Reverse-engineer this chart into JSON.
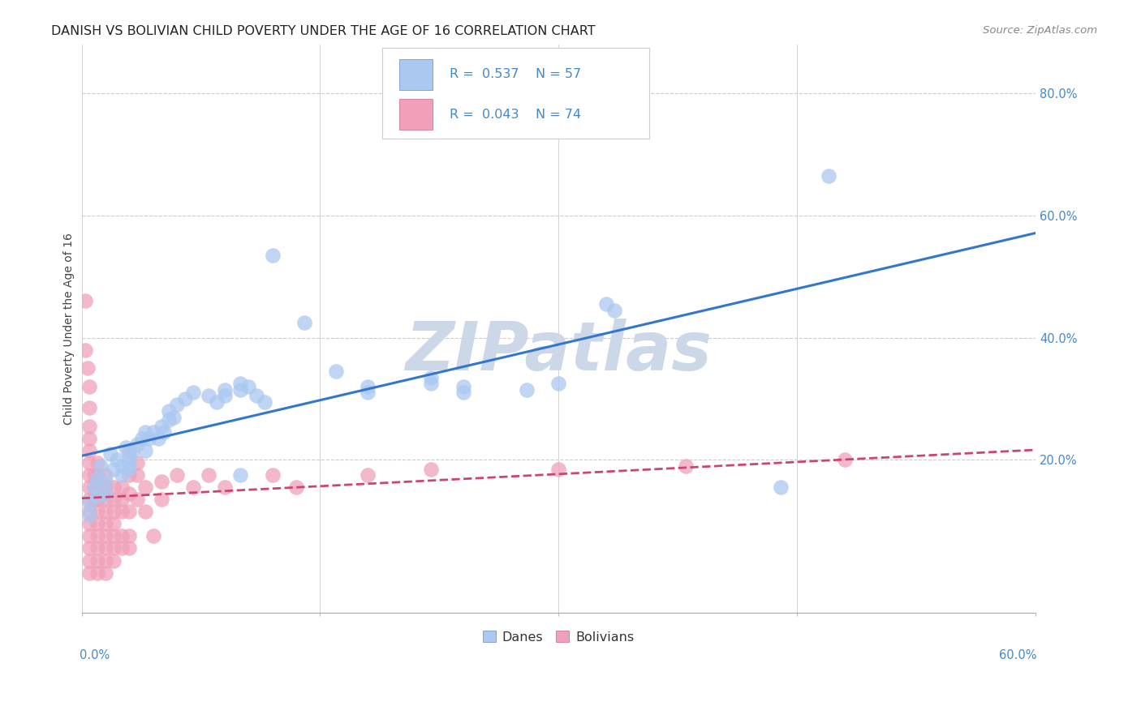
{
  "title": "DANISH VS BOLIVIAN CHILD POVERTY UNDER THE AGE OF 16 CORRELATION CHART",
  "source": "Source: ZipAtlas.com",
  "ylabel": "Child Poverty Under the Age of 16",
  "ytick_values": [
    0.2,
    0.4,
    0.6,
    0.8
  ],
  "ytick_labels": [
    "20.0%",
    "40.0%",
    "60.0%",
    "80.0%"
  ],
  "xlim": [
    0.0,
    0.6
  ],
  "ylim": [
    -0.05,
    0.88
  ],
  "danes_color": "#aac8f0",
  "bolivians_color": "#f0a0b8",
  "danes_line_color": "#3377cc",
  "bolivians_line_color": "#cc4477",
  "watermark": "ZIPatlas",
  "watermark_color": "#ccd8e8",
  "watermark_fontsize": 60,
  "background_color": "#ffffff",
  "grid_color": "#cccccc",
  "title_fontsize": 11.5,
  "source_fontsize": 9.5,
  "ylabel_fontsize": 10,
  "tick_fontsize": 10.5,
  "legend_fontsize": 11.5,
  "danes_points": [
    [
      0.005,
      0.13
    ],
    [
      0.005,
      0.11
    ],
    [
      0.008,
      0.155
    ],
    [
      0.01,
      0.17
    ],
    [
      0.01,
      0.14
    ],
    [
      0.012,
      0.19
    ],
    [
      0.015,
      0.165
    ],
    [
      0.015,
      0.145
    ],
    [
      0.018,
      0.21
    ],
    [
      0.02,
      0.185
    ],
    [
      0.022,
      0.2
    ],
    [
      0.025,
      0.19
    ],
    [
      0.025,
      0.175
    ],
    [
      0.028,
      0.22
    ],
    [
      0.03,
      0.205
    ],
    [
      0.03,
      0.195
    ],
    [
      0.03,
      0.185
    ],
    [
      0.032,
      0.215
    ],
    [
      0.035,
      0.225
    ],
    [
      0.038,
      0.235
    ],
    [
      0.04,
      0.245
    ],
    [
      0.04,
      0.215
    ],
    [
      0.042,
      0.235
    ],
    [
      0.045,
      0.245
    ],
    [
      0.048,
      0.235
    ],
    [
      0.05,
      0.255
    ],
    [
      0.052,
      0.245
    ],
    [
      0.055,
      0.28
    ],
    [
      0.055,
      0.265
    ],
    [
      0.058,
      0.27
    ],
    [
      0.06,
      0.29
    ],
    [
      0.065,
      0.3
    ],
    [
      0.07,
      0.31
    ],
    [
      0.08,
      0.305
    ],
    [
      0.085,
      0.295
    ],
    [
      0.09,
      0.315
    ],
    [
      0.09,
      0.305
    ],
    [
      0.1,
      0.325
    ],
    [
      0.1,
      0.315
    ],
    [
      0.1,
      0.175
    ],
    [
      0.105,
      0.32
    ],
    [
      0.11,
      0.305
    ],
    [
      0.115,
      0.295
    ],
    [
      0.12,
      0.535
    ],
    [
      0.14,
      0.425
    ],
    [
      0.16,
      0.345
    ],
    [
      0.18,
      0.32
    ],
    [
      0.18,
      0.31
    ],
    [
      0.22,
      0.335
    ],
    [
      0.22,
      0.325
    ],
    [
      0.24,
      0.32
    ],
    [
      0.24,
      0.31
    ],
    [
      0.28,
      0.315
    ],
    [
      0.3,
      0.325
    ],
    [
      0.33,
      0.455
    ],
    [
      0.335,
      0.445
    ],
    [
      0.44,
      0.155
    ],
    [
      0.47,
      0.665
    ]
  ],
  "bolivians_points": [
    [
      0.002,
      0.46
    ],
    [
      0.002,
      0.38
    ],
    [
      0.004,
      0.35
    ],
    [
      0.005,
      0.32
    ],
    [
      0.005,
      0.285
    ],
    [
      0.005,
      0.255
    ],
    [
      0.005,
      0.235
    ],
    [
      0.005,
      0.215
    ],
    [
      0.005,
      0.195
    ],
    [
      0.005,
      0.175
    ],
    [
      0.005,
      0.155
    ],
    [
      0.005,
      0.135
    ],
    [
      0.005,
      0.115
    ],
    [
      0.005,
      0.095
    ],
    [
      0.005,
      0.075
    ],
    [
      0.005,
      0.055
    ],
    [
      0.005,
      0.035
    ],
    [
      0.005,
      0.015
    ],
    [
      0.008,
      0.175
    ],
    [
      0.008,
      0.155
    ],
    [
      0.008,
      0.135
    ],
    [
      0.01,
      0.195
    ],
    [
      0.01,
      0.175
    ],
    [
      0.01,
      0.155
    ],
    [
      0.01,
      0.135
    ],
    [
      0.01,
      0.115
    ],
    [
      0.01,
      0.095
    ],
    [
      0.01,
      0.075
    ],
    [
      0.01,
      0.055
    ],
    [
      0.01,
      0.035
    ],
    [
      0.01,
      0.015
    ],
    [
      0.015,
      0.175
    ],
    [
      0.015,
      0.155
    ],
    [
      0.015,
      0.135
    ],
    [
      0.015,
      0.115
    ],
    [
      0.015,
      0.095
    ],
    [
      0.015,
      0.075
    ],
    [
      0.015,
      0.055
    ],
    [
      0.015,
      0.035
    ],
    [
      0.015,
      0.015
    ],
    [
      0.02,
      0.155
    ],
    [
      0.02,
      0.135
    ],
    [
      0.02,
      0.115
    ],
    [
      0.02,
      0.095
    ],
    [
      0.02,
      0.075
    ],
    [
      0.02,
      0.055
    ],
    [
      0.02,
      0.035
    ],
    [
      0.025,
      0.155
    ],
    [
      0.025,
      0.135
    ],
    [
      0.025,
      0.115
    ],
    [
      0.025,
      0.075
    ],
    [
      0.025,
      0.055
    ],
    [
      0.03,
      0.215
    ],
    [
      0.03,
      0.175
    ],
    [
      0.03,
      0.145
    ],
    [
      0.03,
      0.115
    ],
    [
      0.03,
      0.075
    ],
    [
      0.03,
      0.055
    ],
    [
      0.035,
      0.195
    ],
    [
      0.035,
      0.175
    ],
    [
      0.035,
      0.135
    ],
    [
      0.04,
      0.155
    ],
    [
      0.04,
      0.115
    ],
    [
      0.045,
      0.075
    ],
    [
      0.05,
      0.165
    ],
    [
      0.05,
      0.135
    ],
    [
      0.06,
      0.175
    ],
    [
      0.07,
      0.155
    ],
    [
      0.08,
      0.175
    ],
    [
      0.09,
      0.155
    ],
    [
      0.12,
      0.175
    ],
    [
      0.135,
      0.155
    ],
    [
      0.18,
      0.175
    ],
    [
      0.22,
      0.185
    ],
    [
      0.3,
      0.185
    ],
    [
      0.38,
      0.19
    ],
    [
      0.48,
      0.2
    ]
  ]
}
